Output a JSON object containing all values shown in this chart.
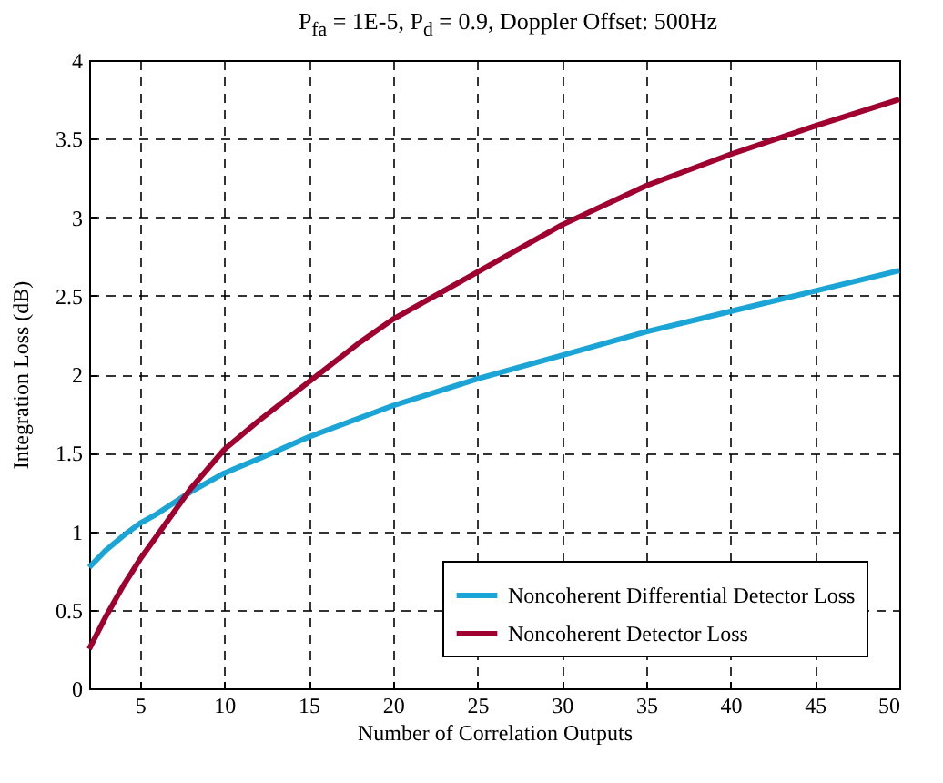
{
  "chart_data": {
    "type": "line",
    "title": "P$_{fa}$ = 1E-5, P$_{d}$ = 0.9, Doppler Offset: 500Hz",
    "xlabel": "Number of Correlation Outputs",
    "ylabel": "Integration Loss (dB)",
    "xlim": [
      2,
      50
    ],
    "xticks": [
      5,
      10,
      15,
      20,
      25,
      30,
      35,
      40,
      45,
      50
    ],
    "ylim": [
      0,
      4
    ],
    "yticks": [
      0,
      0.5,
      1,
      1.5,
      2,
      2.5,
      3,
      3.5,
      4
    ],
    "grid": true,
    "legend": "bottom right",
    "marker": "none",
    "line_style": "solid",
    "x": [
      2,
      3,
      4,
      5,
      6,
      8,
      10,
      12,
      15,
      18,
      20,
      25,
      30,
      35,
      40,
      45,
      50
    ],
    "series": [
      {
        "name": "Noncoherent Differential Detector Loss",
        "color": "#1aa5d6",
        "values": [
          0.77,
          0.88,
          0.97,
          1.05,
          1.11,
          1.25,
          1.37,
          1.46,
          1.6,
          1.72,
          1.8,
          1.97,
          2.12,
          2.27,
          2.4,
          2.53,
          2.66
        ]
      },
      {
        "name": "Noncoherent Detector Loss",
        "color": "#a00030",
        "values": [
          0.25,
          0.46,
          0.65,
          0.82,
          0.97,
          1.27,
          1.52,
          1.7,
          1.95,
          2.2,
          2.35,
          2.65,
          2.95,
          3.2,
          3.4,
          3.58,
          3.75
        ]
      }
    ]
  }
}
